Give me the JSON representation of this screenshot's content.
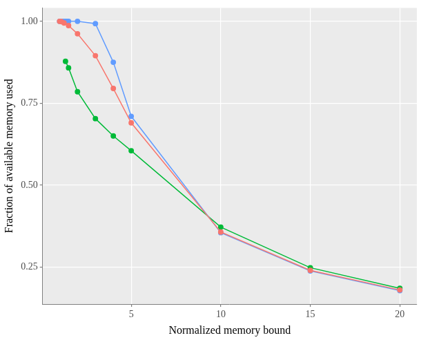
{
  "chart_data": {
    "type": "line",
    "x_label": "Normalized memory bound",
    "y_label": "Fraction of available memory used",
    "xlim": [
      0.05,
      20.95
    ],
    "ylim": [
      0.137,
      1.041
    ],
    "xticks": [
      5,
      10,
      15,
      20
    ],
    "yticks": [
      0.25,
      {
        "value": 0.5,
        "label": "0.50"
      },
      0.75,
      {
        "value": 1,
        "label": "1.00"
      }
    ],
    "grid": true,
    "marker": "circle",
    "series": [
      {
        "color": "#F8766D",
        "x": [
          1.0,
          1.1,
          1.25,
          1.5,
          2,
          3,
          4,
          5,
          10,
          15,
          20
        ],
        "values": [
          1.0,
          0.999,
          0.995,
          0.987,
          0.962,
          0.895,
          0.795,
          0.69,
          0.357,
          0.24,
          0.18
        ]
      },
      {
        "color": "#619CFF",
        "x": [
          1.0,
          1.1,
          1.2,
          1.3,
          1.4,
          1.5,
          2,
          3,
          4,
          5,
          10,
          15,
          20
        ],
        "values": [
          1.0,
          1.0,
          1.0,
          1.0,
          1.0,
          1.0,
          1.0,
          0.993,
          0.875,
          0.71,
          0.355,
          0.238,
          0.178
        ]
      },
      {
        "color": "#00BA38",
        "x": [
          1.33,
          1.5,
          2,
          3,
          4,
          5,
          10,
          15,
          20
        ],
        "values": [
          0.878,
          0.858,
          0.785,
          0.703,
          0.65,
          0.605,
          0.372,
          0.248,
          0.185
        ]
      }
    ]
  }
}
